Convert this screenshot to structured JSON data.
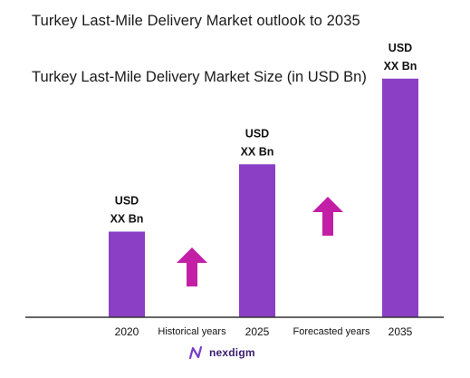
{
  "header": {
    "title": "Turkey Last-Mile Delivery Market outlook to 2035"
  },
  "chart_data": {
    "type": "bar",
    "title": "Turkey Last-Mile Delivery Market Size (in USD Bn)",
    "categories": [
      "2020",
      "2025",
      "2035"
    ],
    "values": [
      28,
      50,
      78
    ],
    "ylim": [
      0,
      80
    ],
    "bar_labels": [
      [
        "USD",
        "XX Bn"
      ],
      [
        "USD",
        "XX Bn"
      ],
      [
        "USD",
        "XX Bn"
      ]
    ],
    "period_labels": [
      "Historical years",
      "Forecasted years"
    ],
    "grid": false,
    "legend": "none",
    "colors": {
      "bar": "#8a3fc4",
      "arrow": "#c21fa6",
      "axis": "#333333"
    },
    "icons": [
      "up-arrow-icon",
      "up-arrow-icon"
    ]
  },
  "footer": {
    "brand": "nexdigm",
    "logo_icon": "nexdigm-logo-icon"
  }
}
